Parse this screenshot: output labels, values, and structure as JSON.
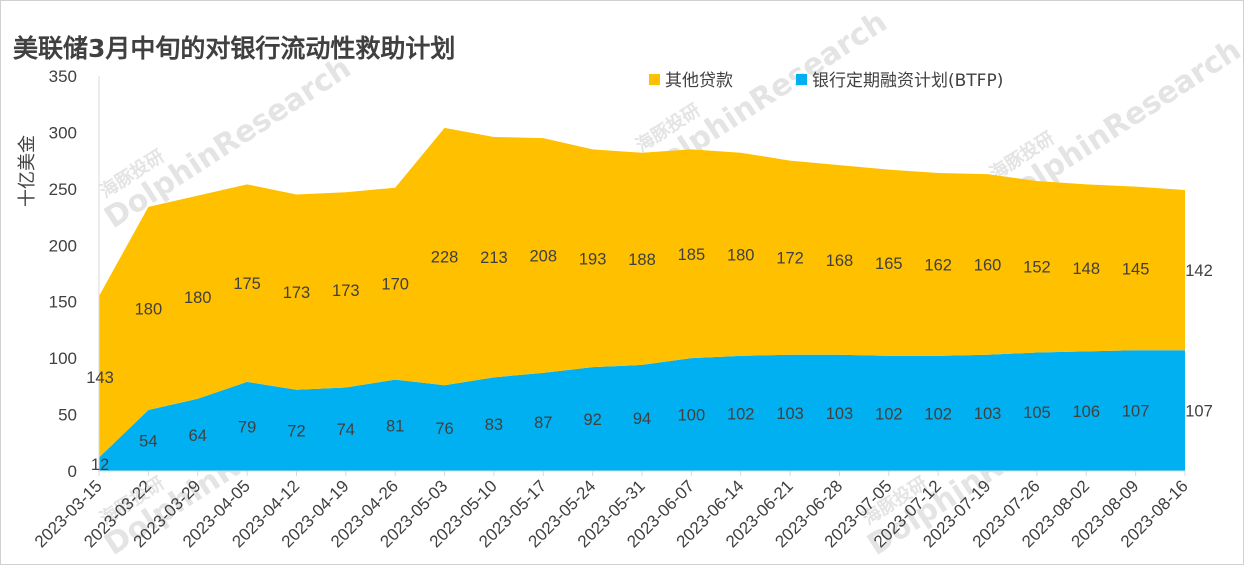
{
  "chart_data": {
    "type": "area",
    "stacked": true,
    "title": "美联储3月中旬的对银行流动性救助计划",
    "xlabel": "",
    "ylabel": "十亿美金",
    "ylim": [
      0,
      350
    ],
    "yticks": [
      0,
      50,
      100,
      150,
      200,
      250,
      300,
      350
    ],
    "grid": false,
    "legend_position": "top",
    "categories": [
      "2023-03-15",
      "2023-03-22",
      "2023-03-29",
      "2023-04-05",
      "2023-04-12",
      "2023-04-19",
      "2023-04-26",
      "2023-05-03",
      "2023-05-10",
      "2023-05-17",
      "2023-05-24",
      "2023-05-31",
      "2023-06-07",
      "2023-06-14",
      "2023-06-21",
      "2023-06-28",
      "2023-07-05",
      "2023-07-12",
      "2023-07-19",
      "2023-07-26",
      "2023-08-02",
      "2023-08-09",
      "2023-08-16"
    ],
    "series": [
      {
        "name": "银行定期融资计划(BTFP)",
        "color": "#00b0f0",
        "values": [
          12,
          54,
          64,
          79,
          72,
          74,
          81,
          76,
          83,
          87,
          92,
          94,
          100,
          102,
          103,
          103,
          102,
          102,
          103,
          105,
          106,
          107,
          107
        ]
      },
      {
        "name": "其他贷款",
        "color": "#ffc000",
        "values": [
          143,
          180,
          180,
          175,
          173,
          173,
          170,
          228,
          213,
          208,
          193,
          188,
          185,
          180,
          172,
          168,
          165,
          162,
          160,
          152,
          148,
          145,
          142
        ]
      }
    ],
    "legend_order": [
      "其他贷款",
      "银行定期融资计划(BTFP)"
    ],
    "watermark": [
      "海豚投研",
      "DolphinResearch"
    ]
  }
}
